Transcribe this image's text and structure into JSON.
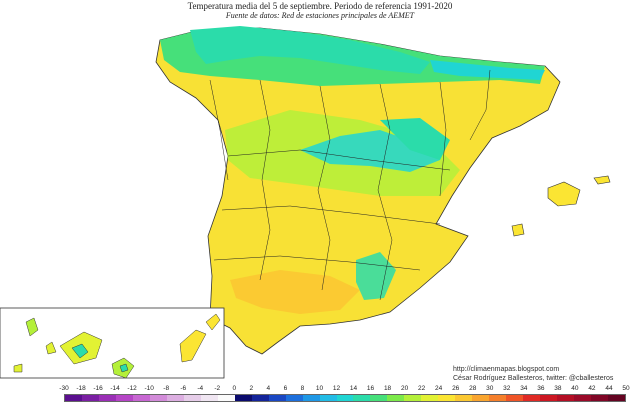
{
  "map": {
    "title": "Temperatura media del 5 de septiembre. Periodo de referencia 1991-2020",
    "subtitle": "Fuente de datos: Red de estaciones principales de AEMET",
    "credit_url": "http://climaenmapas.blogspot.com",
    "credit_author": "César Rodríguez Ballesteros, twitter: @cballesteros"
  },
  "legend": {
    "ticks": [
      "-30",
      "-18",
      "-16",
      "-14",
      "-12",
      "-10",
      "-8",
      "-6",
      "-4",
      "-2",
      "0",
      "2",
      "4",
      "6",
      "8",
      "10",
      "12",
      "14",
      "16",
      "18",
      "20",
      "22",
      "24",
      "26",
      "28",
      "30",
      "32",
      "34",
      "36",
      "38",
      "40",
      "42",
      "44",
      "50"
    ],
    "colors": [
      "#5b0f8f",
      "#7a1fa3",
      "#9a2fb6",
      "#b545c6",
      "#c767d2",
      "#d28bd9",
      "#dcaee1",
      "#e6cde9",
      "#f0e6f2",
      "#fbfbfb",
      "#0b0b6d",
      "#14249a",
      "#1a47c3",
      "#1d6fdc",
      "#1f98e6",
      "#22bce6",
      "#20d5d3",
      "#2bdcaa",
      "#46e07a",
      "#7cea4a",
      "#b4f03a",
      "#e2f234",
      "#fbe533",
      "#fbc832",
      "#f9a52f",
      "#f57f2b",
      "#ef5427",
      "#e02a25",
      "#cc1722",
      "#b40e24",
      "#9a0a28",
      "#800626",
      "#650422"
    ]
  }
}
